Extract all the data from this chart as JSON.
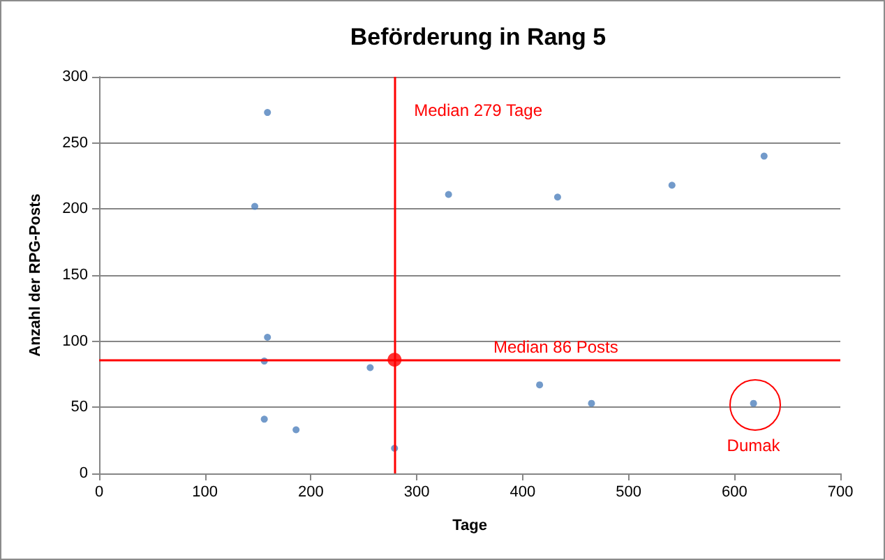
{
  "chart_data": {
    "type": "scatter",
    "title": "Beförderung in Rang 5",
    "xlabel": "Tage",
    "ylabel": "Anzahl der RPG-Posts",
    "series": [
      {
        "color": "#4f81bd",
        "x": [
          159,
          147,
          159,
          156,
          256,
          156,
          186,
          279,
          330,
          433,
          541,
          628,
          416,
          465,
          618
        ],
        "values": [
          273,
          202,
          103,
          85,
          80,
          41,
          33,
          19,
          211,
          209,
          218,
          240,
          67,
          53,
          53
        ]
      },
      {
        "color": "#ff0000",
        "x": [
          279
        ],
        "values": [
          86
        ]
      }
    ],
    "xlim": [
      0,
      700
    ],
    "xticks": [
      0,
      100,
      200,
      300,
      400,
      500,
      600,
      700
    ],
    "ylim": [
      0,
      300
    ],
    "yticks": [
      0,
      50,
      100,
      150,
      200,
      250,
      300
    ],
    "grid": "y",
    "marker": "circle",
    "ref_lines": [
      {
        "axis": "x",
        "value": 279,
        "label": "Median 279 Tage",
        "color": "#ff0000"
      },
      {
        "axis": "y",
        "value": 86,
        "label": "Median 86 Posts",
        "color": "#ff0000"
      }
    ],
    "annotations": [
      {
        "text": "Dumak",
        "x": 618,
        "y": 53
      }
    ]
  }
}
